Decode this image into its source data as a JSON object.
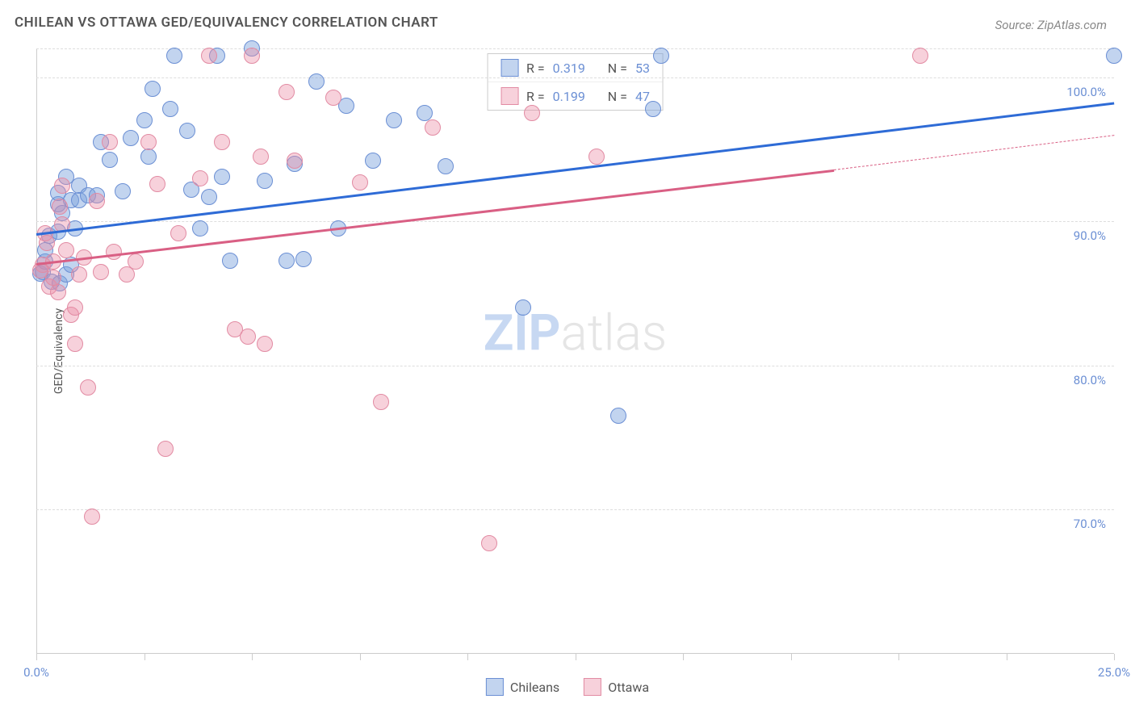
{
  "title": "CHILEAN VS OTTAWA GED/EQUIVALENCY CORRELATION CHART",
  "source": "Source: ZipAtlas.com",
  "watermark_bold": "ZIP",
  "watermark_light": "atlas",
  "yaxis_label": "GED/Equivalency",
  "colors": {
    "series_a_fill": "rgba(120,160,220,0.45)",
    "series_a_stroke": "#6b8fd4",
    "series_b_fill": "rgba(235,140,165,0.40)",
    "series_b_stroke": "#e28ba3",
    "trend_a": "#2e6bd6",
    "trend_b": "#d95f84",
    "grid": "#dddddd",
    "axis": "#cccccc",
    "tick_label": "#6b8fd4",
    "title_color": "#555555",
    "source_color": "#888888",
    "background": "#ffffff"
  },
  "chart": {
    "type": "scatter",
    "xlim": [
      0,
      25
    ],
    "ylim": [
      60,
      102
    ],
    "xtick_step_minor": 2.5,
    "xticks_label": [
      {
        "x": 0,
        "label": "0.0%"
      },
      {
        "x": 25,
        "label": "25.0%"
      }
    ],
    "yticks": [
      {
        "y": 70,
        "label": "70.0%"
      },
      {
        "y": 80,
        "label": "80.0%"
      },
      {
        "y": 90,
        "label": "90.0%"
      },
      {
        "y": 100,
        "label": "100.0%"
      }
    ],
    "point_radius": 9,
    "point_stroke_width": 1.2,
    "trend_line_width": 3,
    "series": [
      {
        "name": "Chileans",
        "key": "a",
        "r": "0.319",
        "n": "53",
        "trend": {
          "x1": 0,
          "y1": 89.2,
          "x2": 25,
          "y2": 98.3,
          "dashed": false
        },
        "trend_dash_ext": null,
        "points": [
          [
            0.1,
            86.4
          ],
          [
            0.15,
            86.5
          ],
          [
            0.2,
            87.2
          ],
          [
            0.2,
            88.0
          ],
          [
            0.3,
            89.0
          ],
          [
            0.35,
            85.8
          ],
          [
            0.5,
            89.3
          ],
          [
            0.5,
            91.2
          ],
          [
            0.5,
            92.0
          ],
          [
            0.55,
            85.7
          ],
          [
            0.6,
            90.6
          ],
          [
            0.7,
            93.1
          ],
          [
            0.7,
            86.3
          ],
          [
            0.8,
            87.0
          ],
          [
            0.8,
            91.5
          ],
          [
            0.9,
            89.5
          ],
          [
            1.0,
            92.5
          ],
          [
            1.0,
            91.5
          ],
          [
            1.2,
            91.8
          ],
          [
            1.4,
            91.8
          ],
          [
            1.5,
            95.5
          ],
          [
            1.7,
            94.3
          ],
          [
            2.0,
            92.1
          ],
          [
            2.2,
            95.8
          ],
          [
            2.5,
            97.0
          ],
          [
            2.6,
            94.5
          ],
          [
            2.7,
            99.2
          ],
          [
            3.1,
            97.8
          ],
          [
            3.2,
            101.5
          ],
          [
            3.5,
            96.3
          ],
          [
            3.6,
            92.2
          ],
          [
            3.8,
            89.5
          ],
          [
            4.0,
            91.7
          ],
          [
            4.2,
            101.5
          ],
          [
            4.3,
            93.1
          ],
          [
            4.5,
            87.3
          ],
          [
            5.0,
            102.0
          ],
          [
            5.3,
            92.8
          ],
          [
            5.8,
            87.3
          ],
          [
            6.0,
            94.0
          ],
          [
            6.2,
            87.4
          ],
          [
            6.5,
            99.7
          ],
          [
            7.0,
            89.5
          ],
          [
            7.2,
            98.0
          ],
          [
            7.8,
            94.2
          ],
          [
            8.3,
            97.0
          ],
          [
            9.0,
            97.5
          ],
          [
            9.5,
            93.8
          ],
          [
            11.3,
            84.0
          ],
          [
            13.5,
            76.5
          ],
          [
            14.3,
            97.8
          ],
          [
            14.5,
            101.5
          ],
          [
            25.0,
            101.5
          ]
        ]
      },
      {
        "name": "Ottawa",
        "key": "b",
        "r": "0.199",
        "n": "47",
        "trend": {
          "x1": 0,
          "y1": 87.1,
          "x2": 18.5,
          "y2": 93.6,
          "dashed": false
        },
        "trend_dash_ext": {
          "x1": 18.5,
          "y1": 93.6,
          "x2": 25,
          "y2": 96.0
        },
        "points": [
          [
            0.1,
            86.6
          ],
          [
            0.15,
            87.0
          ],
          [
            0.2,
            89.2
          ],
          [
            0.25,
            88.5
          ],
          [
            0.3,
            85.5
          ],
          [
            0.4,
            86.1
          ],
          [
            0.4,
            87.2
          ],
          [
            0.5,
            85.1
          ],
          [
            0.55,
            91.0
          ],
          [
            0.6,
            89.8
          ],
          [
            0.6,
            92.5
          ],
          [
            0.7,
            88.0
          ],
          [
            0.8,
            83.5
          ],
          [
            0.9,
            84.0
          ],
          [
            0.9,
            81.5
          ],
          [
            1.0,
            86.3
          ],
          [
            1.1,
            87.5
          ],
          [
            1.2,
            78.5
          ],
          [
            1.3,
            69.5
          ],
          [
            1.4,
            91.4
          ],
          [
            1.5,
            86.5
          ],
          [
            1.7,
            95.5
          ],
          [
            1.8,
            87.9
          ],
          [
            2.1,
            86.3
          ],
          [
            2.3,
            87.2
          ],
          [
            2.6,
            95.5
          ],
          [
            2.8,
            92.6
          ],
          [
            3.0,
            74.2
          ],
          [
            3.3,
            89.2
          ],
          [
            3.8,
            93.0
          ],
          [
            4.0,
            101.5
          ],
          [
            4.3,
            95.5
          ],
          [
            4.6,
            82.5
          ],
          [
            4.9,
            82.0
          ],
          [
            5.0,
            101.5
          ],
          [
            5.2,
            94.5
          ],
          [
            5.3,
            81.5
          ],
          [
            5.8,
            99.0
          ],
          [
            6.0,
            94.2
          ],
          [
            6.9,
            98.6
          ],
          [
            7.5,
            92.7
          ],
          [
            8.0,
            77.5
          ],
          [
            9.2,
            96.5
          ],
          [
            10.5,
            67.7
          ],
          [
            11.5,
            97.5
          ],
          [
            13.0,
            94.5
          ],
          [
            20.5,
            101.5
          ]
        ]
      }
    ]
  },
  "legend_top_labels": {
    "r": "R =",
    "n": "N ="
  },
  "legend_bottom": [
    {
      "key": "a",
      "label": "Chileans"
    },
    {
      "key": "b",
      "label": "Ottawa"
    }
  ]
}
